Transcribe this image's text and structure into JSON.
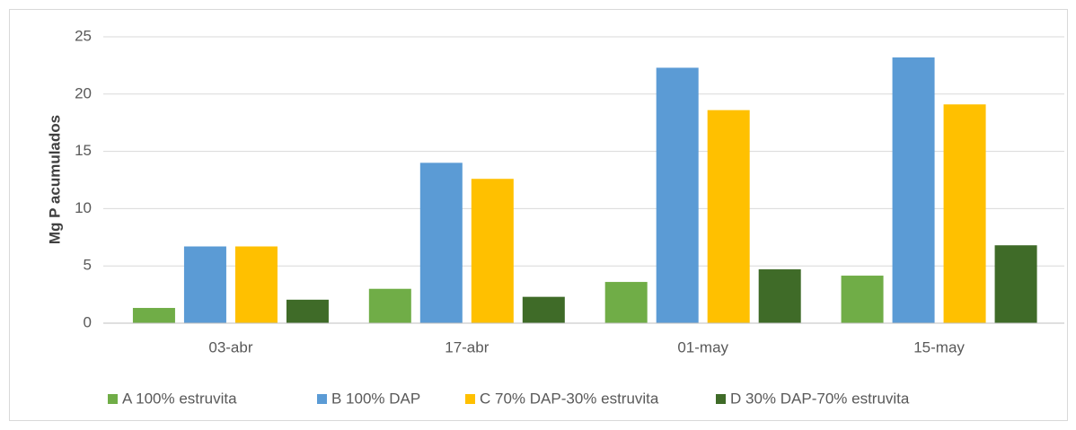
{
  "chart_data": {
    "type": "bar",
    "y_label": "Mg P acumulados",
    "categories": [
      "03-abr",
      "17-abr",
      "01-may",
      "15-may"
    ],
    "series": [
      {
        "name": "A 100% estruvita",
        "color": "#70ad47",
        "values": [
          1.33,
          3.0,
          3.6,
          4.15
        ]
      },
      {
        "name": "B 100% DAP",
        "color": "#5b9bd5",
        "values": [
          6.7,
          14.0,
          22.3,
          23.2
        ]
      },
      {
        "name": "C 70% DAP-30% estruvita",
        "color": "#ffc000",
        "values": [
          6.7,
          12.6,
          18.6,
          19.1
        ]
      },
      {
        "name": "D 30% DAP-70% estruvita",
        "color": "#3f6b28",
        "values": [
          2.05,
          2.3,
          4.7,
          6.8
        ]
      }
    ],
    "ylim": [
      0,
      25
    ],
    "yticks": [
      0,
      5,
      10,
      15,
      20,
      25
    ],
    "grid": true,
    "legend": "bottom"
  }
}
